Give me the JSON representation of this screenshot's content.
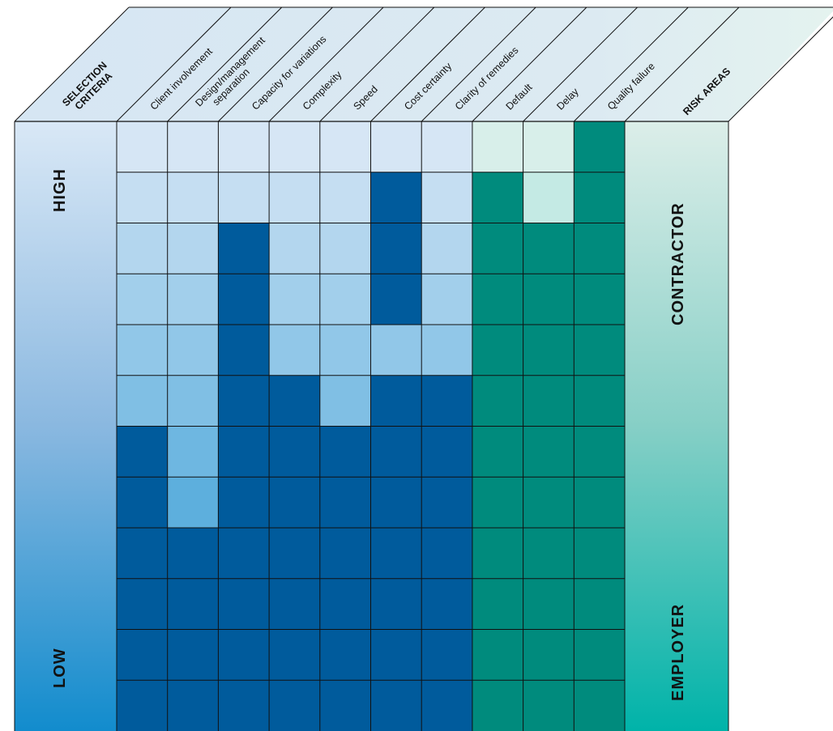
{
  "header": {
    "selection_criteria": [
      "SELECTION",
      "CRITERIA"
    ],
    "risk_areas": "RISK AREAS"
  },
  "left_scale": {
    "high": "HIGH",
    "low": "LOW"
  },
  "right_scale": {
    "contractor": "CONTRACTOR",
    "employer": "EMPLOYER"
  },
  "columns": [
    {
      "label": [
        "Client involvement"
      ],
      "group": "selection",
      "marked_levels": 6
    },
    {
      "label": [
        "Design/management",
        "separation"
      ],
      "group": "selection",
      "marked_levels": 4
    },
    {
      "label": [
        "Capacity for variations"
      ],
      "group": "selection",
      "marked_levels": 10
    },
    {
      "label": [
        "Complexity"
      ],
      "group": "selection",
      "marked_levels": 7
    },
    {
      "label": [
        "Speed"
      ],
      "group": "selection",
      "marked_levels": 6
    },
    {
      "label": [
        "Cost certainty"
      ],
      "group": "selection",
      "marked_levels": 11,
      "unmarked_rows": [
        4
      ]
    },
    {
      "label": [
        "Clarity of remedies"
      ],
      "group": "selection",
      "marked_levels": 7,
      "unmarked_rows": [
        2
      ]
    },
    {
      "label": [
        "Default"
      ],
      "group": "risk",
      "marked_levels": 11
    },
    {
      "label": [
        "Delay"
      ],
      "group": "risk",
      "marked_levels": 10
    },
    {
      "label": [
        "Quality failure"
      ],
      "group": "risk",
      "marked_levels": 12
    }
  ],
  "colors": {
    "selection_marked": "#005b9c",
    "risk_marked": "#008b7d",
    "selection_top": "#d6e6f5",
    "selection_bottom": "#1890d0",
    "risk_top": "#d8efea",
    "risk_bottom": "#00b5ac",
    "header_face": "#dbe9f4",
    "header_risk_face": "#ddf0ec",
    "grid_line": "#111111"
  }
}
